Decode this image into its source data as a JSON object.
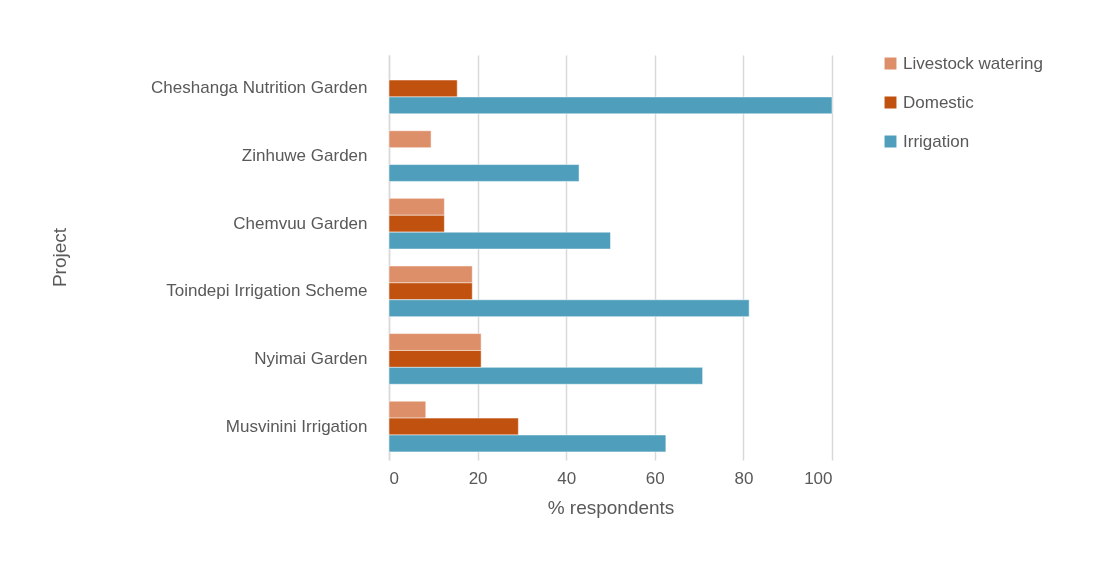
{
  "chart_data": {
    "type": "bar",
    "orientation": "horizontal",
    "xlabel": "% respondents",
    "ylabel": "Project",
    "categories": [
      "Cheshanga Nutrition Garden",
      "Zinhuwe Garden",
      "Chemvuu Garden",
      "Toindepi Irrigation Scheme",
      "Nyimai Garden",
      "Musvinini Irrigation"
    ],
    "series": [
      {
        "name": "Livestock watering",
        "color": "#dd8f6a",
        "values": [
          null,
          9.5,
          12.5,
          18.8,
          20.8,
          8.3
        ]
      },
      {
        "name": "Domestic",
        "color": "#c0510e",
        "values": [
          15.4,
          null,
          12.5,
          18.8,
          20.8,
          29.2
        ]
      },
      {
        "name": "Irrigation",
        "color": "#4f9fbc",
        "values": [
          100,
          42.9,
          50,
          81.3,
          70.8,
          62.5
        ]
      }
    ],
    "xlim": [
      0,
      100
    ],
    "xticks": [
      0,
      20,
      40,
      60,
      80,
      100
    ],
    "grid": "x",
    "legend": "right"
  }
}
